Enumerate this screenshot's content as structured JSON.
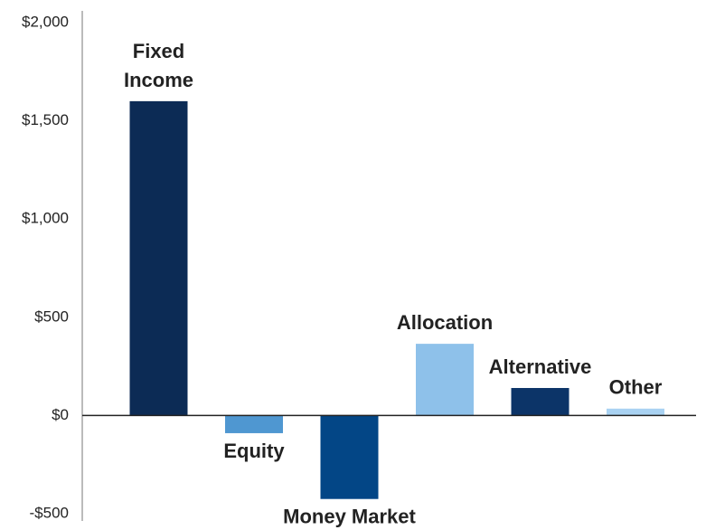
{
  "chart_data": {
    "type": "bar",
    "categories": [
      "Fixed\nIncome",
      "Equity",
      "Money Market",
      "Allocation",
      "Alternative",
      "Other"
    ],
    "values": [
      1600,
      -90,
      -425,
      365,
      140,
      35
    ],
    "colors": [
      "#0c2b55",
      "#4f97d1",
      "#034686",
      "#8ec1ea",
      "#0c3468",
      "#a9d2f2"
    ],
    "ylim": [
      -500,
      2000
    ],
    "yticks": [
      {
        "value": -500,
        "label": "-$500"
      },
      {
        "value": 0,
        "label": "$0"
      },
      {
        "value": 500,
        "label": "$500"
      },
      {
        "value": 1000,
        "label": "$1,000"
      },
      {
        "value": 1500,
        "label": "$1,500"
      },
      {
        "value": 2000,
        "label": "$2,000"
      }
    ],
    "grid": false
  }
}
